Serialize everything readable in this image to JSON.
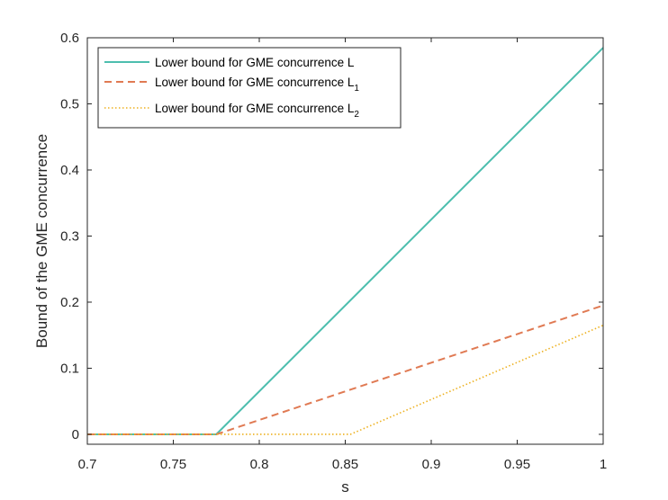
{
  "chart_data": {
    "type": "line",
    "title": "",
    "xlabel": "s",
    "ylabel": "Bound of the GME concurrence",
    "xlim": [
      0.7,
      1.0
    ],
    "ylim": [
      -0.015,
      0.6
    ],
    "xticks": [
      0.7,
      0.75,
      0.8,
      0.85,
      0.9,
      0.95,
      1.0
    ],
    "xtick_labels": [
      "0.7",
      "0.75",
      "0.8",
      "0.85",
      "0.9",
      "0.95",
      "1"
    ],
    "yticks": [
      0,
      0.1,
      0.2,
      0.3,
      0.4,
      0.5,
      0.6
    ],
    "ytick_labels": [
      "0",
      "0.1",
      "0.2",
      "0.3",
      "0.4",
      "0.5",
      "0.6"
    ],
    "grid": false,
    "legend_position": "top-left",
    "series": [
      {
        "name": "Lower bound for GME concurrence L",
        "name_text": "Lower bound for GME concurrence L",
        "name_subscript": "",
        "style": "solid",
        "color": "#4dbeae",
        "x": [
          0.7,
          0.775,
          1.0
        ],
        "y": [
          0,
          0,
          0.585
        ]
      },
      {
        "name": "Lower bound for GME concurrence L1",
        "name_text": "Lower bound for GME concurrence L",
        "name_subscript": "1",
        "style": "dashed",
        "color": "#e07a53",
        "x": [
          0.7,
          0.775,
          1.0
        ],
        "y": [
          0,
          0,
          0.195
        ]
      },
      {
        "name": "Lower bound for GME concurrence L2",
        "name_text": "Lower bound for GME concurrence L",
        "name_subscript": "2",
        "style": "dotted",
        "color": "#edb120",
        "x": [
          0.7,
          0.853,
          1.0
        ],
        "y": [
          0,
          0,
          0.165
        ]
      }
    ]
  }
}
